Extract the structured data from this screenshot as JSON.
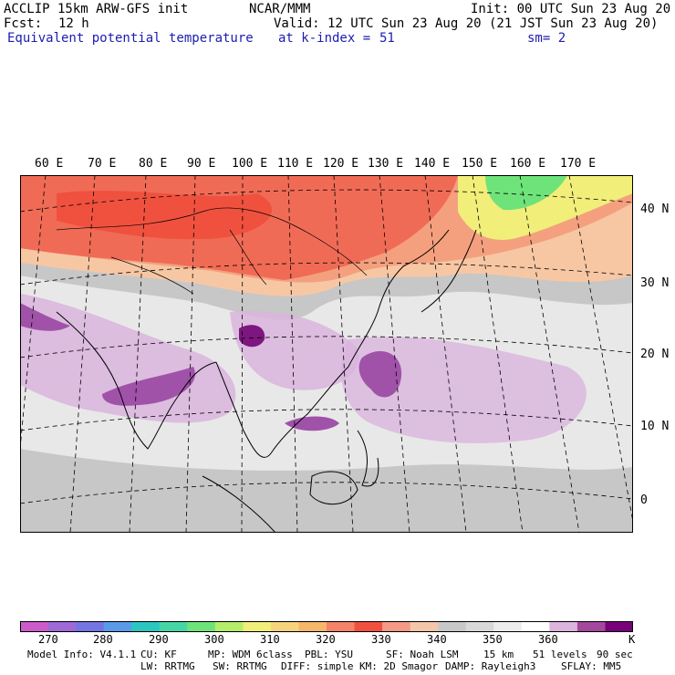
{
  "header": {
    "model": "ACCLIP 15km ARW-GFS init",
    "org": "NCAR/MMM",
    "init": "Init: 00 UTC Sun 23 Aug 20",
    "fcst_label": "Fcst:",
    "fcst_value": "12 h",
    "valid": "Valid: 12 UTC Sun 23 Aug 20 (21 JST Sun 23 Aug 20)",
    "field": "Equivalent potential temperature",
    "level": "at k-index =",
    "level_value": "51",
    "smoothing": "sm= 2"
  },
  "map": {
    "longitude_labels": [
      "60 E",
      "70 E",
      "80 E",
      "90 E",
      "100 E",
      "110 E",
      "120 E",
      "130 E",
      "140 E",
      "150 E",
      "160 E",
      "170 E"
    ],
    "latitude_labels": [
      "40 N",
      "30 N",
      "20 N",
      "10 N",
      "0"
    ],
    "colors": {
      "warm": "#f06b55",
      "orange": "#f4a07e",
      "peach": "#f7c7a4",
      "gray": "#c7c7c7",
      "lightgray": "#e8e8e8",
      "lavender": "#d9b4dd",
      "purple": "#a052a9",
      "darkpurple": "#7d177f",
      "green": "#6ee37a"
    }
  },
  "colorbar": {
    "colors": [
      "#cc5ccc",
      "#9f6ad6",
      "#7474e2",
      "#5a9aea",
      "#2cc6c0",
      "#46d6a6",
      "#6ee37a",
      "#b4ee6a",
      "#f1ee7a",
      "#f6d47e",
      "#f6b76a",
      "#f4836a",
      "#f0513e",
      "#f49a86",
      "#f4c6aa",
      "#c8c8c8",
      "#d8d8d8",
      "#ececec",
      "#ffffff",
      "#dcb4dc",
      "#a4489e",
      "#7a007a"
    ],
    "ticks": [
      "270",
      "280",
      "290",
      "300",
      "310",
      "320",
      "330",
      "340",
      "350",
      "360"
    ],
    "unit": "K"
  },
  "model_info": {
    "line1": [
      "Model Info: V4.1.1",
      "CU: KF",
      "MP: WDM 6class",
      "PBL: YSU",
      "SF: Noah LSM",
      "15 km",
      "51 levels",
      "90 sec"
    ],
    "line2": [
      "LW: RRTMG",
      "SW: RRTMG",
      "DIFF: simple",
      "KM: 2D Smagor",
      "DAMP: Rayleigh3",
      "SFLAY: MM5"
    ]
  }
}
